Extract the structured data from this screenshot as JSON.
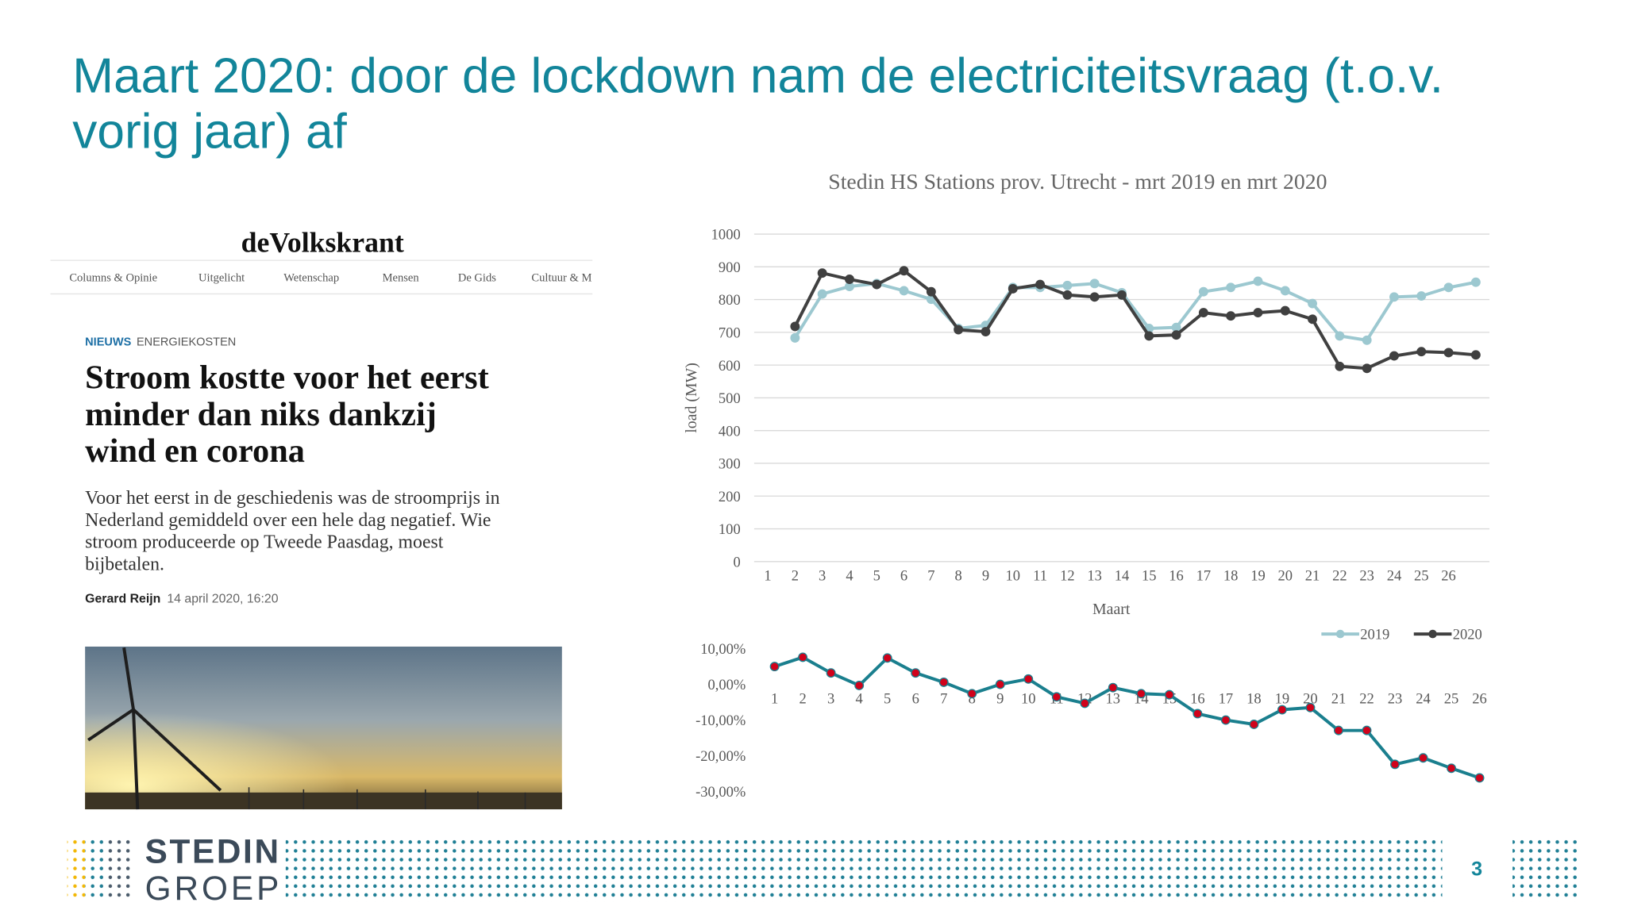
{
  "slide": {
    "title_lines": [
      "Maart 2020: door de lockdown nam de electriciteitsvraag (t.o.v.",
      "vorig jaar) af"
    ],
    "page_number": "3",
    "logo_top": "STEDIN",
    "logo_bottom": "GROEP"
  },
  "article": {
    "masthead": "deVolkskrant",
    "nav": [
      "Columns & Opinie",
      "Uitgelicht",
      "Wetenschap",
      "Mensen",
      "De Gids",
      "Cultuur & M"
    ],
    "section": "NIEUWS",
    "topic": "ENERGIEKOSTEN",
    "headline_lines": [
      "Stroom kostte voor het eerst",
      "minder dan niks dankzij",
      "wind en corona"
    ],
    "lead_lines": [
      "Voor het eerst in de geschiedenis was de stroomprijs in",
      "Nederland gemiddeld over een hele dag negatief. Wie",
      "stroom produceerde op Tweede Paasdag, moest",
      "bijbetalen."
    ],
    "author": "Gerard Reijn",
    "date": "14 april 2020, 16:20"
  },
  "chart_data": [
    {
      "type": "line",
      "title": "Stedin HS Stations prov. Utrecht - mrt 2019 en mrt 2020",
      "x_label": "Maart",
      "y_label": "load (MW)",
      "categories": [
        1,
        2,
        3,
        4,
        5,
        6,
        7,
        8,
        9,
        10,
        11,
        12,
        13,
        14,
        15,
        16,
        17,
        18,
        19,
        20,
        21,
        22,
        23,
        24,
        25,
        26,
        null
      ],
      "ylim": [
        0,
        1000
      ],
      "yticks": [
        0,
        100,
        200,
        300,
        400,
        500,
        600,
        700,
        800,
        900,
        1000
      ],
      "grid": true,
      "legend": "bottom-right",
      "series": [
        {
          "name": "2019",
          "color": "#9cc8d0",
          "values": [
            null,
            683,
            817,
            840,
            849,
            827,
            801,
            712,
            721,
            837,
            837,
            843,
            849,
            821,
            712,
            715,
            824,
            837,
            856,
            827,
            788,
            689,
            676,
            808,
            811,
            837,
            853
          ]
        },
        {
          "name": "2020",
          "color": "#404040",
          "values": [
            null,
            718,
            881,
            862,
            846,
            888,
            824,
            708,
            702,
            833,
            846,
            814,
            808,
            814,
            689,
            692,
            760,
            750,
            760,
            766,
            740,
            596,
            590,
            628,
            641,
            638,
            631
          ]
        }
      ]
    },
    {
      "type": "line",
      "categories": [
        1,
        2,
        3,
        4,
        5,
        6,
        7,
        8,
        9,
        10,
        11,
        12,
        13,
        14,
        15,
        16,
        17,
        18,
        19,
        20,
        21,
        22,
        23,
        24,
        25,
        26
      ],
      "ylim": [
        -30,
        10
      ],
      "yticks": [
        {
          "value": -30,
          "label": "-30,00%"
        },
        {
          "value": -20,
          "label": "-20,00%"
        },
        {
          "value": -10,
          "label": "-10,00%"
        },
        {
          "value": 0,
          "label": "0,00%"
        },
        {
          "value": 10,
          "label": "10,00%"
        }
      ],
      "grid": false,
      "series": [
        {
          "color": "#1a7f8e",
          "marker_color": "#d0021b",
          "values": [
            5.0,
            7.6,
            3.2,
            -0.3,
            7.4,
            3.2,
            0.6,
            -2.6,
            0,
            1.5,
            -3.5,
            -5.3,
            -0.9,
            -2.6,
            -2.9,
            -8.2,
            -10,
            -11.2,
            -7.1,
            -6.5,
            -12.9,
            -12.9,
            -22.4,
            -20.6,
            -23.5,
            -26.2
          ]
        }
      ]
    }
  ]
}
